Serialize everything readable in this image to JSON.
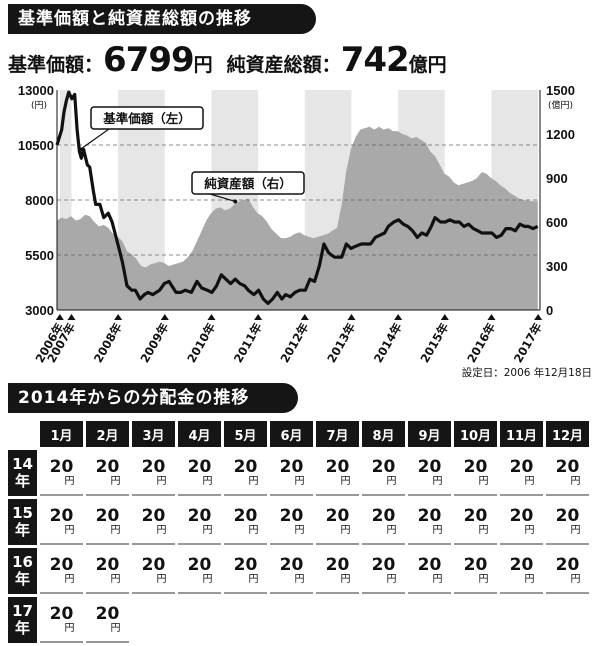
{
  "title": "基準価額と純資産総額の推移",
  "headline": {
    "nav_label": "基準価額：",
    "nav_value": "6799",
    "nav_unit": "円",
    "assets_label": "純資産総額：",
    "assets_value": "742",
    "assets_unit": "億円"
  },
  "chart_data": {
    "type": "line",
    "left_axis": {
      "unit": "(円)",
      "ticks": [
        "13000",
        "10500",
        "8000",
        "5500",
        "3000"
      ],
      "range": [
        3000,
        13000
      ]
    },
    "right_axis": {
      "unit": "(億円)",
      "ticks": [
        "1500",
        "1200",
        "900",
        "600",
        "300",
        "0"
      ],
      "range": [
        0,
        1500
      ]
    },
    "x_ticks": [
      "2006年",
      "2007年",
      "2008年",
      "2009年",
      "2010年",
      "2011年",
      "2012年",
      "2013年",
      "2014年",
      "2015年",
      "2016年",
      "2017年"
    ],
    "dashed_gridlines_left": [
      10500,
      8000,
      5500
    ],
    "shaded_year_bands": true,
    "annotations": [
      "基準価額（左）",
      "純資産額（右）"
    ],
    "series": [
      {
        "name": "基準価額（左）",
        "axis": "left",
        "style": "line",
        "x": [
          2006.9,
          2007.0,
          2007.05,
          2007.1,
          2007.15,
          2007.22,
          2007.28,
          2007.33,
          2007.38,
          2007.42,
          2007.47,
          2007.55,
          2007.6,
          2007.68,
          2007.73,
          2007.82,
          2007.9,
          2008.0,
          2008.08,
          2008.18,
          2008.3,
          2008.4,
          2008.5,
          2008.58,
          2008.68,
          2008.77,
          2008.85,
          2008.95,
          2009.1,
          2009.2,
          2009.3,
          2009.45,
          2009.55,
          2009.65,
          2009.78,
          2009.9,
          2010.0,
          2010.12,
          2010.22,
          2010.32,
          2010.42,
          2010.52,
          2010.62,
          2010.72,
          2010.82,
          2010.92,
          2011.0,
          2011.12,
          2011.22,
          2011.32,
          2011.42,
          2011.52,
          2011.62,
          2011.72,
          2011.8,
          2011.9,
          2012.0,
          2012.1,
          2012.22,
          2012.32,
          2012.42,
          2012.52,
          2012.62,
          2012.72,
          2012.78,
          2012.85,
          2012.92,
          2013.0,
          2013.1,
          2013.2,
          2013.3,
          2013.42,
          2013.52,
          2013.62,
          2013.72,
          2013.82,
          2013.92,
          2014.0,
          2014.12,
          2014.22,
          2014.32,
          2014.42,
          2014.52,
          2014.62,
          2014.72,
          2014.82,
          2014.92,
          2015.0,
          2015.12,
          2015.22,
          2015.32,
          2015.42,
          2015.52,
          2015.62,
          2015.72,
          2015.82,
          2015.92,
          2016.0,
          2016.12,
          2016.22,
          2016.32,
          2016.42,
          2016.52,
          2016.62,
          2016.72,
          2016.82,
          2016.92,
          2017.0,
          2017.1,
          2017.2
        ],
        "y": [
          10500,
          11200,
          12000,
          12500,
          12900,
          12600,
          12800,
          11200,
          10200,
          9900,
          10300,
          9600,
          9500,
          8400,
          7800,
          7800,
          7200,
          7400,
          7000,
          6200,
          5200,
          4100,
          3900,
          3900,
          3500,
          3700,
          3800,
          3700,
          3900,
          4200,
          4300,
          3800,
          3800,
          3900,
          3800,
          4300,
          4000,
          3900,
          3800,
          4100,
          4600,
          4400,
          4200,
          4400,
          4200,
          4100,
          3900,
          3700,
          3900,
          3500,
          3300,
          3500,
          3800,
          3500,
          3700,
          3600,
          3800,
          3900,
          3900,
          4400,
          4300,
          5000,
          6000,
          5600,
          5500,
          5400,
          5400,
          5400,
          6000,
          5800,
          5900,
          6000,
          6000,
          6000,
          6300,
          6400,
          6500,
          6800,
          7000,
          7100,
          6900,
          6800,
          6600,
          6300,
          6500,
          6400,
          6800,
          7200,
          7000,
          7000,
          7100,
          7000,
          7000,
          6800,
          6900,
          6700,
          6600,
          6500,
          6500,
          6500,
          6300,
          6400,
          6700,
          6700,
          6600,
          6900,
          6800,
          6800,
          6700,
          6800
        ]
      },
      {
        "name": "純資産額（右）",
        "axis": "right",
        "style": "area",
        "x": [
          2006.9,
          2007.0,
          2007.1,
          2007.2,
          2007.3,
          2007.4,
          2007.5,
          2007.6,
          2007.7,
          2007.8,
          2007.9,
          2008.0,
          2008.1,
          2008.2,
          2008.3,
          2008.4,
          2008.5,
          2008.6,
          2008.7,
          2008.8,
          2008.9,
          2009.0,
          2009.1,
          2009.2,
          2009.3,
          2009.4,
          2009.5,
          2009.6,
          2009.7,
          2009.8,
          2009.9,
          2010.0,
          2010.1,
          2010.2,
          2010.3,
          2010.4,
          2010.5,
          2010.6,
          2010.7,
          2010.8,
          2010.9,
          2011.0,
          2011.1,
          2011.2,
          2011.3,
          2011.4,
          2011.5,
          2011.6,
          2011.7,
          2011.8,
          2011.9,
          2012.0,
          2012.1,
          2012.2,
          2012.3,
          2012.4,
          2012.5,
          2012.6,
          2012.7,
          2012.8,
          2012.9,
          2013.0,
          2013.1,
          2013.2,
          2013.3,
          2013.4,
          2013.5,
          2013.6,
          2013.7,
          2013.8,
          2013.9,
          2014.0,
          2014.1,
          2014.2,
          2014.3,
          2014.4,
          2014.5,
          2014.6,
          2014.7,
          2014.8,
          2014.9,
          2015.0,
          2015.1,
          2015.2,
          2015.3,
          2015.4,
          2015.5,
          2015.6,
          2015.7,
          2015.8,
          2015.9,
          2016.0,
          2016.1,
          2016.2,
          2016.3,
          2016.4,
          2016.5,
          2016.6,
          2016.7,
          2016.8,
          2016.9,
          2017.0,
          2017.1,
          2017.2
        ],
        "y": [
          610,
          630,
          620,
          640,
          610,
          620,
          650,
          640,
          600,
          570,
          580,
          560,
          520,
          500,
          470,
          400,
          380,
          350,
          300,
          290,
          310,
          320,
          330,
          320,
          300,
          310,
          320,
          330,
          360,
          400,
          470,
          540,
          610,
          660,
          690,
          700,
          680,
          690,
          720,
          740,
          750,
          760,
          700,
          660,
          640,
          600,
          550,
          520,
          490,
          490,
          500,
          520,
          530,
          510,
          500,
          490,
          500,
          510,
          520,
          540,
          560,
          720,
          950,
          1100,
          1180,
          1230,
          1240,
          1250,
          1230,
          1250,
          1230,
          1240,
          1220,
          1220,
          1200,
          1190,
          1170,
          1180,
          1160,
          1140,
          1080,
          1050,
          990,
          930,
          910,
          870,
          850,
          860,
          870,
          880,
          900,
          940,
          930,
          900,
          880,
          850,
          830,
          800,
          780,
          760,
          750,
          745,
          742,
          742
        ]
      }
    ]
  },
  "setting_note": "設定日：2006 年12月18日",
  "distribution": {
    "title": "2014年からの分配金の推移",
    "months": [
      "1月",
      "2月",
      "3月",
      "4月",
      "5月",
      "6月",
      "7月",
      "8月",
      "9月",
      "10月",
      "11月",
      "12月"
    ],
    "rows": [
      {
        "year_top": "14",
        "year_bottom": "年",
        "values": [
          "20",
          "20",
          "20",
          "20",
          "20",
          "20",
          "20",
          "20",
          "20",
          "20",
          "20",
          "20"
        ]
      },
      {
        "year_top": "15",
        "year_bottom": "年",
        "values": [
          "20",
          "20",
          "20",
          "20",
          "20",
          "20",
          "20",
          "20",
          "20",
          "20",
          "20",
          "20"
        ]
      },
      {
        "year_top": "16",
        "year_bottom": "年",
        "values": [
          "20",
          "20",
          "20",
          "20",
          "20",
          "20",
          "20",
          "20",
          "20",
          "20",
          "20",
          "20"
        ]
      },
      {
        "year_top": "17",
        "year_bottom": "年",
        "values": [
          "20",
          "20"
        ]
      }
    ],
    "unit": "円"
  }
}
